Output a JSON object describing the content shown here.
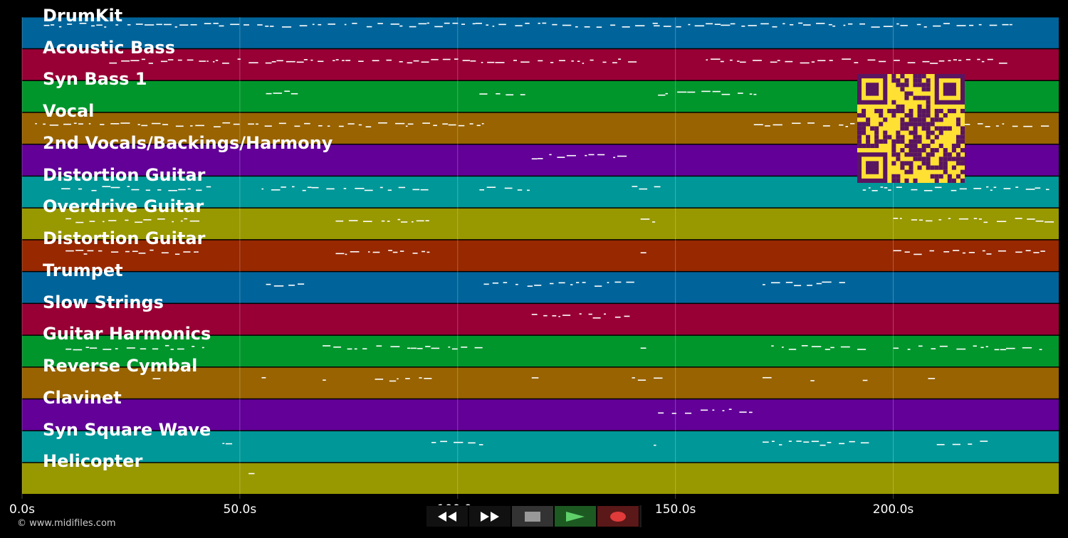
{
  "tracks": [
    {
      "name": "DrumKit",
      "color": "#00649a"
    },
    {
      "name": "Acoustic Bass",
      "color": "#980035"
    },
    {
      "name": "Syn Bass 1",
      "color": "#00962c"
    },
    {
      "name": "Vocal",
      "color": "#986300"
    },
    {
      "name": "2nd Vocals/Backings/Harmony",
      "color": "#620098"
    },
    {
      "name": "Distortion Guitar",
      "color": "#009798"
    },
    {
      "name": "Overdrive Guitar",
      "color": "#989800"
    },
    {
      "name": "Distortion Guitar",
      "color": "#972800"
    },
    {
      "name": "Trumpet",
      "color": "#00649a"
    },
    {
      "name": "Slow Strings",
      "color": "#980035"
    },
    {
      "name": "Guitar Harmonics",
      "color": "#00962c"
    },
    {
      "name": "Reverse Cymbal",
      "color": "#986300"
    },
    {
      "name": "Clavinet",
      "color": "#620098"
    },
    {
      "name": "Syn Square Wave",
      "color": "#009798"
    },
    {
      "name": "Helicopter",
      "color": "#989800"
    }
  ],
  "timeline": {
    "ticks": [
      "0.0s",
      "50.0s",
      "100.0s",
      "150.0s",
      "200.0s"
    ],
    "tick_seconds": [
      0,
      50,
      100,
      150,
      200
    ],
    "duration_seconds": 238
  },
  "transport": {
    "rewind_icon": "rewind-icon",
    "forward_icon": "fast-forward-icon",
    "stop_icon": "stop-icon",
    "play_icon": "play-icon",
    "record_icon": "record-icon"
  },
  "copyright": "© www.midifiles.com"
}
